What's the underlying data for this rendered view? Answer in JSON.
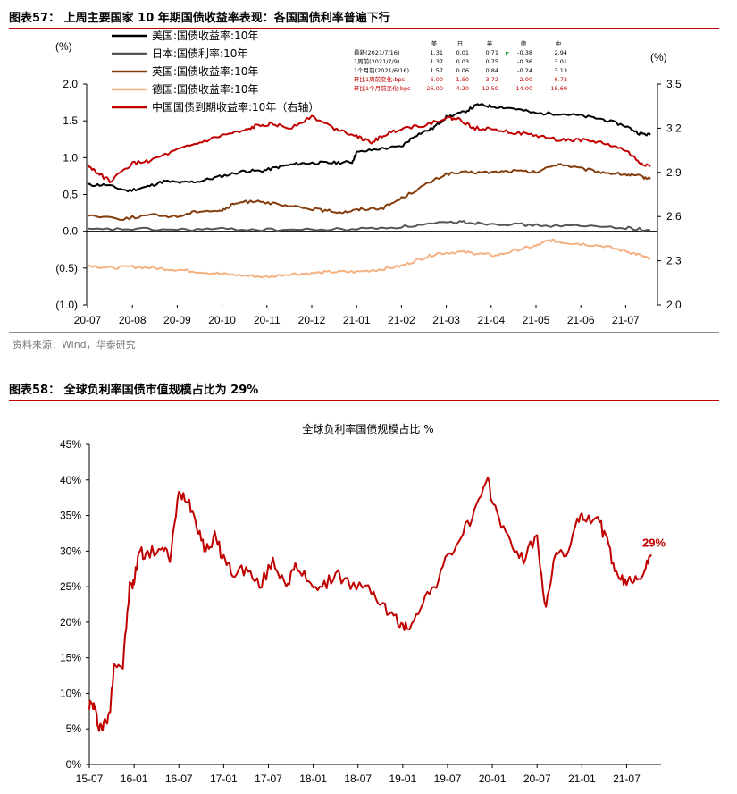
{
  "figure57": {
    "title": "图表57： 上周主要国家 10 年期国债收益率表现：各国国债利率普遍下行",
    "source": "资料来源：Wind，华泰研究"
  },
  "figure58": {
    "title": "图表58： 全球负利率国债市值规模占比为 29%"
  },
  "chart_data": [
    {
      "type": "line",
      "left_unit": "(%)",
      "right_unit": "(%)",
      "x_ticks": [
        "20-07",
        "20-08",
        "20-09",
        "20-10",
        "20-11",
        "20-12",
        "21-01",
        "21-02",
        "21-03",
        "21-04",
        "21-05",
        "21-06",
        "21-07"
      ],
      "y_ticks_left": [
        "2.0",
        "1.5",
        "1.0",
        "0.5",
        "0.0",
        "(0.5)",
        "(1.0)"
      ],
      "y_ticks_right": [
        "3.5",
        "3.2",
        "2.9",
        "2.6",
        "2.3",
        "2.0"
      ],
      "ylim_left": [
        -1.0,
        2.0
      ],
      "ylim_right": [
        2.0,
        3.5
      ],
      "grid": false,
      "legend_position": "top-left",
      "series": [
        {
          "name": "美国:国债收益率:10年",
          "axis": "left",
          "color": "#000000",
          "anchors": [
            [
              0,
              0.63
            ],
            [
              0.4,
              0.63
            ],
            [
              0.9,
              0.55
            ],
            [
              1.3,
              0.6
            ],
            [
              1.7,
              0.68
            ],
            [
              2.1,
              0.66
            ],
            [
              2.5,
              0.68
            ],
            [
              3.0,
              0.75
            ],
            [
              3.5,
              0.82
            ],
            [
              3.9,
              0.82
            ],
            [
              4.3,
              0.88
            ],
            [
              4.7,
              0.92
            ],
            [
              5.1,
              0.93
            ],
            [
              5.5,
              0.93
            ],
            [
              5.9,
              0.94
            ],
            [
              6.0,
              1.07
            ],
            [
              6.5,
              1.12
            ],
            [
              7.0,
              1.15
            ],
            [
              7.3,
              1.3
            ],
            [
              7.7,
              1.4
            ],
            [
              8.0,
              1.55
            ],
            [
              8.4,
              1.62
            ],
            [
              8.7,
              1.72
            ],
            [
              9.0,
              1.7
            ],
            [
              9.5,
              1.67
            ],
            [
              10.0,
              1.6
            ],
            [
              10.5,
              1.6
            ],
            [
              11.0,
              1.57
            ],
            [
              11.5,
              1.52
            ],
            [
              12.0,
              1.43
            ],
            [
              12.3,
              1.33
            ],
            [
              12.55,
              1.31
            ]
          ]
        },
        {
          "name": "日本:国债利率:10年",
          "axis": "left",
          "color": "#555555",
          "anchors": [
            [
              0,
              0.02
            ],
            [
              1,
              0.03
            ],
            [
              2,
              0.02
            ],
            [
              3,
              0.03
            ],
            [
              4,
              0.02
            ],
            [
              5,
              0.02
            ],
            [
              6,
              0.03
            ],
            [
              7,
              0.06
            ],
            [
              7.7,
              0.1
            ],
            [
              8.3,
              0.13
            ],
            [
              8.7,
              0.11
            ],
            [
              9.3,
              0.1
            ],
            [
              10,
              0.08
            ],
            [
              11,
              0.07
            ],
            [
              12,
              0.05
            ],
            [
              12.55,
              0.01
            ]
          ]
        },
        {
          "name": "英国:国债收益率:10年",
          "axis": "left",
          "color": "#843c0c",
          "anchors": [
            [
              0,
              0.22
            ],
            [
              0.8,
              0.17
            ],
            [
              1.4,
              0.22
            ],
            [
              2.0,
              0.2
            ],
            [
              2.5,
              0.28
            ],
            [
              3.0,
              0.28
            ],
            [
              3.3,
              0.38
            ],
            [
              3.8,
              0.42
            ],
            [
              4.3,
              0.35
            ],
            [
              4.8,
              0.32
            ],
            [
              5.3,
              0.28
            ],
            [
              5.7,
              0.26
            ],
            [
              6.1,
              0.3
            ],
            [
              6.6,
              0.32
            ],
            [
              7.0,
              0.45
            ],
            [
              7.5,
              0.62
            ],
            [
              8.0,
              0.78
            ],
            [
              8.5,
              0.8
            ],
            [
              9.0,
              0.8
            ],
            [
              9.5,
              0.82
            ],
            [
              10.0,
              0.8
            ],
            [
              10.5,
              0.92
            ],
            [
              11.0,
              0.85
            ],
            [
              11.5,
              0.8
            ],
            [
              12.0,
              0.77
            ],
            [
              12.3,
              0.75
            ],
            [
              12.55,
              0.71
            ]
          ]
        },
        {
          "name": "德国:国债收益率:10年",
          "axis": "left",
          "color": "#f4b183",
          "anchors": [
            [
              0,
              -0.46
            ],
            [
              0.5,
              -0.5
            ],
            [
              1,
              -0.48
            ],
            [
              1.5,
              -0.5
            ],
            [
              2,
              -0.52
            ],
            [
              2.5,
              -0.55
            ],
            [
              3,
              -0.58
            ],
            [
              3.5,
              -0.6
            ],
            [
              4,
              -0.62
            ],
            [
              4.5,
              -0.58
            ],
            [
              5,
              -0.57
            ],
            [
              5.5,
              -0.55
            ],
            [
              6,
              -0.55
            ],
            [
              6.5,
              -0.52
            ],
            [
              7,
              -0.47
            ],
            [
              7.4,
              -0.38
            ],
            [
              7.8,
              -0.3
            ],
            [
              8.3,
              -0.28
            ],
            [
              8.7,
              -0.3
            ],
            [
              9.1,
              -0.33
            ],
            [
              9.6,
              -0.25
            ],
            [
              10.0,
              -0.2
            ],
            [
              10.3,
              -0.12
            ],
            [
              10.6,
              -0.15
            ],
            [
              11.0,
              -0.17
            ],
            [
              11.5,
              -0.2
            ],
            [
              12.0,
              -0.27
            ],
            [
              12.3,
              -0.32
            ],
            [
              12.55,
              -0.38
            ]
          ]
        },
        {
          "name": "中国国债到期收益率:10年（右轴）",
          "axis": "right",
          "color": "#c00000",
          "anchors": [
            [
              0,
              2.95
            ],
            [
              0.3,
              2.88
            ],
            [
              0.5,
              2.84
            ],
            [
              1.0,
              2.96
            ],
            [
              1.4,
              2.98
            ],
            [
              2.0,
              3.05
            ],
            [
              2.5,
              3.1
            ],
            [
              3.0,
              3.15
            ],
            [
              3.5,
              3.18
            ],
            [
              3.8,
              3.22
            ],
            [
              4.1,
              3.23
            ],
            [
              4.5,
              3.2
            ],
            [
              5.0,
              3.28
            ],
            [
              5.5,
              3.2
            ],
            [
              6.0,
              3.15
            ],
            [
              6.3,
              3.1
            ],
            [
              6.6,
              3.15
            ],
            [
              7.0,
              3.2
            ],
            [
              7.5,
              3.22
            ],
            [
              8.0,
              3.27
            ],
            [
              8.3,
              3.26
            ],
            [
              8.6,
              3.2
            ],
            [
              9.0,
              3.2
            ],
            [
              9.5,
              3.17
            ],
            [
              10.0,
              3.15
            ],
            [
              10.5,
              3.12
            ],
            [
              11.0,
              3.12
            ],
            [
              11.5,
              3.1
            ],
            [
              12.0,
              3.05
            ],
            [
              12.3,
              2.97
            ],
            [
              12.55,
              2.94
            ]
          ]
        }
      ],
      "annotation_table": {
        "headers": [
          "美",
          "日",
          "英",
          "德",
          "中"
        ],
        "rows": [
          {
            "label": "最新(2021/7/16)",
            "values": [
              "1.31",
              "0.01",
              "0.71",
              "-0.38",
              "2.94"
            ],
            "highlight": false
          },
          {
            "label": "1周前(2021/7/9)",
            "values": [
              "1.37",
              "0.03",
              "0.75",
              "-0.36",
              "3.01"
            ],
            "highlight": false
          },
          {
            "label": "1个月前(2021/6/16)",
            "values": [
              "1.57",
              "0.06",
              "0.84",
              "-0.24",
              "3.13"
            ],
            "highlight": false
          },
          {
            "label": "环比1周前变化:bps",
            "values": [
              "-6.00",
              "-1.50",
              "-3.72",
              "-2.00",
              "-6.73"
            ],
            "highlight": true
          },
          {
            "label": "环比1个月前变化:bps",
            "values": [
              "-26.00",
              "-4.20",
              "-12.59",
              "-14.00",
              "-18.69"
            ],
            "highlight": true
          }
        ]
      }
    },
    {
      "type": "line",
      "title": "全球负利率国债规模占比 %",
      "x_ticks": [
        "15-07",
        "16-01",
        "16-07",
        "17-01",
        "17-07",
        "18-01",
        "18-07",
        "19-01",
        "19-07",
        "20-01",
        "20-07",
        "21-01",
        "21-07"
      ],
      "y_ticks": [
        "45%",
        "40%",
        "35%",
        "30%",
        "25%",
        "20%",
        "15%",
        "10%",
        "5%",
        "0%"
      ],
      "ylim": [
        0,
        45
      ],
      "grid": false,
      "last_label": "29%",
      "series": [
        {
          "color": "#c00000",
          "anchors": [
            [
              0,
              8.5
            ],
            [
              0.1,
              8.3
            ],
            [
              0.2,
              5.6
            ],
            [
              0.3,
              5.3
            ],
            [
              0.45,
              6.8
            ],
            [
              0.55,
              14.3
            ],
            [
              0.75,
              13.8
            ],
            [
              0.9,
              25
            ],
            [
              1.0,
              25.5
            ],
            [
              1.1,
              30
            ],
            [
              1.3,
              29.5
            ],
            [
              1.6,
              30.5
            ],
            [
              1.8,
              29
            ],
            [
              2.0,
              38
            ],
            [
              2.2,
              37.5
            ],
            [
              2.4,
              34
            ],
            [
              2.6,
              30
            ],
            [
              2.8,
              32
            ],
            [
              3.0,
              29
            ],
            [
              3.2,
              27
            ],
            [
              3.5,
              27.5
            ],
            [
              3.8,
              25
            ],
            [
              4.1,
              28.5
            ],
            [
              4.4,
              25.5
            ],
            [
              4.6,
              27.5
            ],
            [
              4.9,
              26
            ],
            [
              5.2,
              24.5
            ],
            [
              5.5,
              27
            ],
            [
              5.9,
              25
            ],
            [
              6.3,
              24.5
            ],
            [
              6.6,
              22
            ],
            [
              6.9,
              20
            ],
            [
              7.1,
              19
            ],
            [
              7.4,
              22.5
            ],
            [
              7.7,
              25
            ],
            [
              8.0,
              29
            ],
            [
              8.3,
              32
            ],
            [
              8.6,
              35.5
            ],
            [
              8.9,
              39.5
            ],
            [
              9.1,
              35.5
            ],
            [
              9.4,
              31
            ],
            [
              9.7,
              29
            ],
            [
              10.0,
              32
            ],
            [
              10.2,
              21.5
            ],
            [
              10.4,
              30
            ],
            [
              10.6,
              29
            ],
            [
              10.9,
              34
            ],
            [
              11.1,
              35
            ],
            [
              11.4,
              34
            ],
            [
              11.6,
              30.5
            ],
            [
              11.8,
              26
            ],
            [
              12.0,
              25.5
            ],
            [
              12.2,
              26.5
            ],
            [
              12.4,
              27
            ],
            [
              12.55,
              29.5
            ]
          ]
        }
      ]
    }
  ]
}
